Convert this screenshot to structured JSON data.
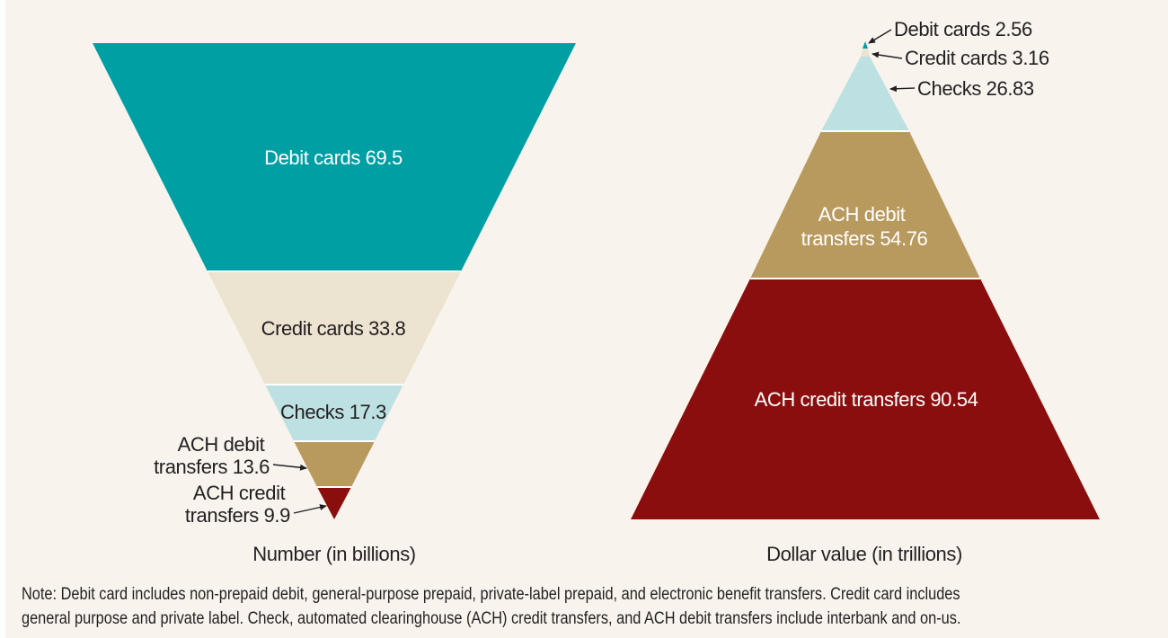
{
  "chart_data": [
    {
      "type": "funnel",
      "xlabel": "Number (in billions)",
      "orientation": "inverted",
      "series": [
        {
          "name": "Debit cards",
          "value": 69.5,
          "label": "Debit cards 69.5",
          "color": "#009fa3",
          "text_color": "#ffffff"
        },
        {
          "name": "Credit cards",
          "value": 33.8,
          "label": "Credit cards 33.8",
          "color": "#ece3d0",
          "text_color": "#231f20"
        },
        {
          "name": "Checks",
          "value": 17.3,
          "label": "Checks 17.3",
          "color": "#bde0e2",
          "text_color": "#231f20"
        },
        {
          "name": "ACH debit transfers",
          "value": 13.6,
          "label_lines": [
            "ACH debit",
            "transfers 13.6"
          ],
          "color": "#b89a5f",
          "text_color": "#231f20"
        },
        {
          "name": "ACH credit transfers",
          "value": 9.9,
          "label_lines": [
            "ACH credit",
            "transfers 9.9"
          ],
          "color": "#8b0e0e",
          "text_color": "#231f20"
        }
      ]
    },
    {
      "type": "pyramid",
      "xlabel": "Dollar value (in trillions)",
      "orientation": "upright",
      "series": [
        {
          "name": "Debit cards",
          "value": 2.56,
          "label": "Debit cards 2.56",
          "color": "#009fa3",
          "text_color": "#231f20"
        },
        {
          "name": "Credit cards",
          "value": 3.16,
          "label": "Credit cards 3.16",
          "color": "#ece3d0",
          "text_color": "#231f20"
        },
        {
          "name": "Checks",
          "value": 26.83,
          "label": "Checks 26.83",
          "color": "#bde0e2",
          "text_color": "#231f20"
        },
        {
          "name": "ACH debit transfers",
          "value": 54.76,
          "label_lines": [
            "ACH debit",
            "transfers 54.76"
          ],
          "color": "#b89a5f",
          "text_color": "#ffffff"
        },
        {
          "name": "ACH credit transfers",
          "value": 90.54,
          "label": "ACH credit transfers 90.54",
          "color": "#8b0e0e",
          "text_color": "#ffffff"
        }
      ]
    }
  ],
  "note": {
    "line1": "Note: Debit card includes non-prepaid debit, general-purpose prepaid, private-label prepaid, and electronic benefit transfers. Credit card includes",
    "line2": "general purpose and private label. Check, automated clearinghouse (ACH) credit transfers, and ACH debit transfers include interbank and on-us."
  },
  "colors": {
    "background": "#f8f4ed",
    "text": "#231f20"
  }
}
